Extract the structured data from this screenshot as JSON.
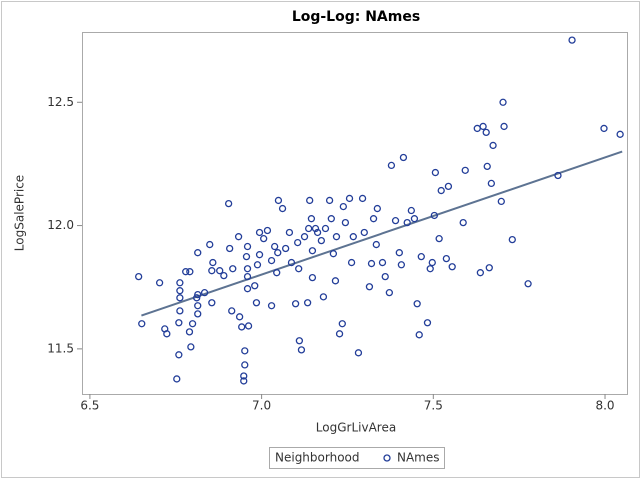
{
  "chart_data": {
    "type": "scatter",
    "title": "Log-Log: NAmes",
    "x_label": "LogGrLivArea",
    "y_label": "LogSalePrice",
    "legend_title": "Neighborhood",
    "xlim": [
      6.477,
      8.064
    ],
    "ylim": [
      11.317,
      12.785
    ],
    "xticks": [
      6.5,
      {
        "value": 7.0,
        "label": "7.0"
      },
      7.5,
      {
        "value": 8.0,
        "label": "8.0"
      }
    ],
    "yticks": [
      11.5,
      {
        "value": 12.0,
        "label": "12.0"
      },
      12.5
    ],
    "grid": false,
    "fit": {
      "x": [
        6.65,
        8.05
      ],
      "values": [
        11.635,
        12.3
      ],
      "color": "#5d7392"
    },
    "series": [
      {
        "name": "NAmes",
        "color": "#233e99",
        "x": [
          6.642,
          6.651,
          6.703,
          6.718,
          6.724,
          6.753,
          6.759,
          6.762,
          6.762,
          6.762,
          6.762,
          6.759,
          6.779,
          6.791,
          6.794,
          6.799,
          6.79,
          6.811,
          6.814,
          6.814,
          6.814,
          6.814,
          6.834,
          6.849,
          6.855,
          6.858,
          6.855,
          6.878,
          6.89,
          6.904,
          6.907,
          6.916,
          6.913,
          6.933,
          6.936,
          6.942,
          6.951,
          6.948,
          6.948,
          6.951,
          6.956,
          6.959,
          6.959,
          6.959,
          6.959,
          6.962,
          6.98,
          6.985,
          6.988,
          6.994,
          6.994,
          7.006,
          7.017,
          7.029,
          7.029,
          7.038,
          7.044,
          7.047,
          7.049,
          7.061,
          7.07,
          7.081,
          7.087,
          7.099,
          7.105,
          7.108,
          7.11,
          7.116,
          7.125,
          7.134,
          7.137,
          7.14,
          7.145,
          7.148,
          7.148,
          7.157,
          7.163,
          7.174,
          7.18,
          7.186,
          7.198,
          7.203,
          7.209,
          7.215,
          7.218,
          7.227,
          7.235,
          7.238,
          7.244,
          7.256,
          7.262,
          7.267,
          7.282,
          7.294,
          7.299,
          7.314,
          7.32,
          7.326,
          7.334,
          7.337,
          7.352,
          7.36,
          7.372,
          7.378,
          7.39,
          7.401,
          7.407,
          7.413,
          7.424,
          7.436,
          7.445,
          7.453,
          7.459,
          7.465,
          7.483,
          7.491,
          7.497,
          7.503,
          7.506,
          7.517,
          7.523,
          7.538,
          7.544,
          7.555,
          7.587,
          7.593,
          7.628,
          7.637,
          7.645,
          7.654,
          7.657,
          7.663,
          7.669,
          7.674,
          7.698,
          7.703,
          7.706,
          7.73,
          7.776,
          7.863,
          7.904,
          7.997,
          8.044
        ],
        "values": [
          11.793,
          11.602,
          11.768,
          11.581,
          11.561,
          11.378,
          11.476,
          11.768,
          11.736,
          11.707,
          11.654,
          11.606,
          11.813,
          11.813,
          11.508,
          11.602,
          11.569,
          11.707,
          11.89,
          11.72,
          11.642,
          11.675,
          11.728,
          11.923,
          11.817,
          11.85,
          11.687,
          11.817,
          11.797,
          12.089,
          11.907,
          11.825,
          11.654,
          11.955,
          11.63,
          11.589,
          11.435,
          11.39,
          11.37,
          11.492,
          11.874,
          11.915,
          11.825,
          11.793,
          11.744,
          11.593,
          11.756,
          11.687,
          11.841,
          11.882,
          11.972,
          11.947,
          11.98,
          11.858,
          11.675,
          11.915,
          11.809,
          11.89,
          12.102,
          12.069,
          11.907,
          11.972,
          11.85,
          11.683,
          11.931,
          11.825,
          11.533,
          11.496,
          11.955,
          11.687,
          11.988,
          12.102,
          12.028,
          11.898,
          11.789,
          11.988,
          11.972,
          11.939,
          11.711,
          11.988,
          12.102,
          12.028,
          11.886,
          11.776,
          11.955,
          11.561,
          11.602,
          12.077,
          12.012,
          12.11,
          11.85,
          11.955,
          11.484,
          12.11,
          11.972,
          11.752,
          11.846,
          12.028,
          11.923,
          12.069,
          11.85,
          11.793,
          11.728,
          12.244,
          12.02,
          11.89,
          11.841,
          12.276,
          12.012,
          12.061,
          12.028,
          11.683,
          11.557,
          11.874,
          11.606,
          11.825,
          11.85,
          12.041,
          12.215,
          11.947,
          12.142,
          11.866,
          12.159,
          11.833,
          12.012,
          12.224,
          12.394,
          11.809,
          12.402,
          12.378,
          12.24,
          11.829,
          12.171,
          12.325,
          12.098,
          12.5,
          12.402,
          11.943,
          11.764,
          12.203,
          12.752,
          12.394,
          12.37
        ]
      }
    ]
  }
}
